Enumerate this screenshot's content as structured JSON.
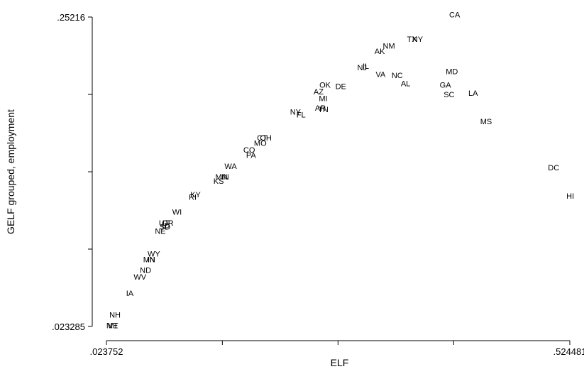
{
  "chart_data": {
    "type": "scatter",
    "marker": "text-labels",
    "xlabel": "ELF",
    "ylabel": "GELF grouped, employment",
    "xlim": [
      0.023752,
      0.524481
    ],
    "ylim": [
      0.023285,
      0.25216
    ],
    "x_tick_labels": [
      {
        "value": 0.023752,
        "label": ".023752"
      },
      {
        "value": 0.524481,
        "label": ".524481"
      }
    ],
    "x_unlabeled_ticks": [
      0.149,
      0.274,
      0.399
    ],
    "y_tick_labels": [
      {
        "value": 0.25216,
        "label": ".25216"
      },
      {
        "value": 0.023285,
        "label": ".023285"
      }
    ],
    "y_unlabeled_ticks": [
      0.0805,
      0.1377,
      0.1949
    ],
    "points": [
      {
        "label": "CA",
        "x": 0.4,
        "y": 0.254
      },
      {
        "label": "TX",
        "x": 0.354,
        "y": 0.236
      },
      {
        "label": "NY",
        "x": 0.36,
        "y": 0.236
      },
      {
        "label": "NM",
        "x": 0.329,
        "y": 0.231
      },
      {
        "label": "AK",
        "x": 0.319,
        "y": 0.227
      },
      {
        "label": "NJ",
        "x": 0.3,
        "y": 0.215
      },
      {
        "label": "IL",
        "x": 0.304,
        "y": 0.216
      },
      {
        "label": "MD",
        "x": 0.397,
        "y": 0.212
      },
      {
        "label": "VA",
        "x": 0.32,
        "y": 0.21
      },
      {
        "label": "NC",
        "x": 0.338,
        "y": 0.209
      },
      {
        "label": "AL",
        "x": 0.347,
        "y": 0.203
      },
      {
        "label": "GA",
        "x": 0.39,
        "y": 0.202
      },
      {
        "label": "DE",
        "x": 0.277,
        "y": 0.201
      },
      {
        "label": "OK",
        "x": 0.26,
        "y": 0.202
      },
      {
        "label": "AZ",
        "x": 0.253,
        "y": 0.197
      },
      {
        "label": "SC",
        "x": 0.394,
        "y": 0.195
      },
      {
        "label": "LA",
        "x": 0.42,
        "y": 0.196
      },
      {
        "label": "MI",
        "x": 0.258,
        "y": 0.192
      },
      {
        "label": "AR",
        "x": 0.255,
        "y": 0.185
      },
      {
        "label": "TN",
        "x": 0.258,
        "y": 0.184
      },
      {
        "label": "NY",
        "x": 0.228,
        "y": 0.182
      },
      {
        "label": "FL",
        "x": 0.234,
        "y": 0.18
      },
      {
        "label": "MS",
        "x": 0.434,
        "y": 0.175
      },
      {
        "label": "CT",
        "x": 0.192,
        "y": 0.163
      },
      {
        "label": "OH",
        "x": 0.196,
        "y": 0.163
      },
      {
        "label": "MO",
        "x": 0.19,
        "y": 0.159
      },
      {
        "label": "CO",
        "x": 0.178,
        "y": 0.154
      },
      {
        "label": "PA",
        "x": 0.18,
        "y": 0.15
      },
      {
        "label": "DC",
        "x": 0.507,
        "y": 0.141
      },
      {
        "label": "WA",
        "x": 0.158,
        "y": 0.142
      },
      {
        "label": "MN",
        "x": 0.148,
        "y": 0.134
      },
      {
        "label": "IN",
        "x": 0.152,
        "y": 0.134
      },
      {
        "label": "KS",
        "x": 0.145,
        "y": 0.131
      },
      {
        "label": "KY",
        "x": 0.12,
        "y": 0.121
      },
      {
        "label": "RI",
        "x": 0.117,
        "y": 0.119
      },
      {
        "label": "HI",
        "x": 0.525,
        "y": 0.12
      },
      {
        "label": "WI",
        "x": 0.1,
        "y": 0.108
      },
      {
        "label": "UT",
        "x": 0.086,
        "y": 0.1
      },
      {
        "label": "OR",
        "x": 0.09,
        "y": 0.1
      },
      {
        "label": "ID",
        "x": 0.088,
        "y": 0.098
      },
      {
        "label": "SD",
        "x": 0.087,
        "y": 0.097
      },
      {
        "label": "NE",
        "x": 0.082,
        "y": 0.094
      },
      {
        "label": "WY",
        "x": 0.075,
        "y": 0.077
      },
      {
        "label": "MN",
        "x": 0.07,
        "y": 0.073
      },
      {
        "label": "IN",
        "x": 0.072,
        "y": 0.073
      },
      {
        "label": "ND",
        "x": 0.066,
        "y": 0.065
      },
      {
        "label": "WV",
        "x": 0.06,
        "y": 0.06
      },
      {
        "label": "IA",
        "x": 0.049,
        "y": 0.048
      },
      {
        "label": "NH",
        "x": 0.033,
        "y": 0.032
      },
      {
        "label": "ME",
        "x": 0.03,
        "y": 0.024
      },
      {
        "label": "VT",
        "x": 0.031,
        "y": 0.024
      }
    ]
  }
}
